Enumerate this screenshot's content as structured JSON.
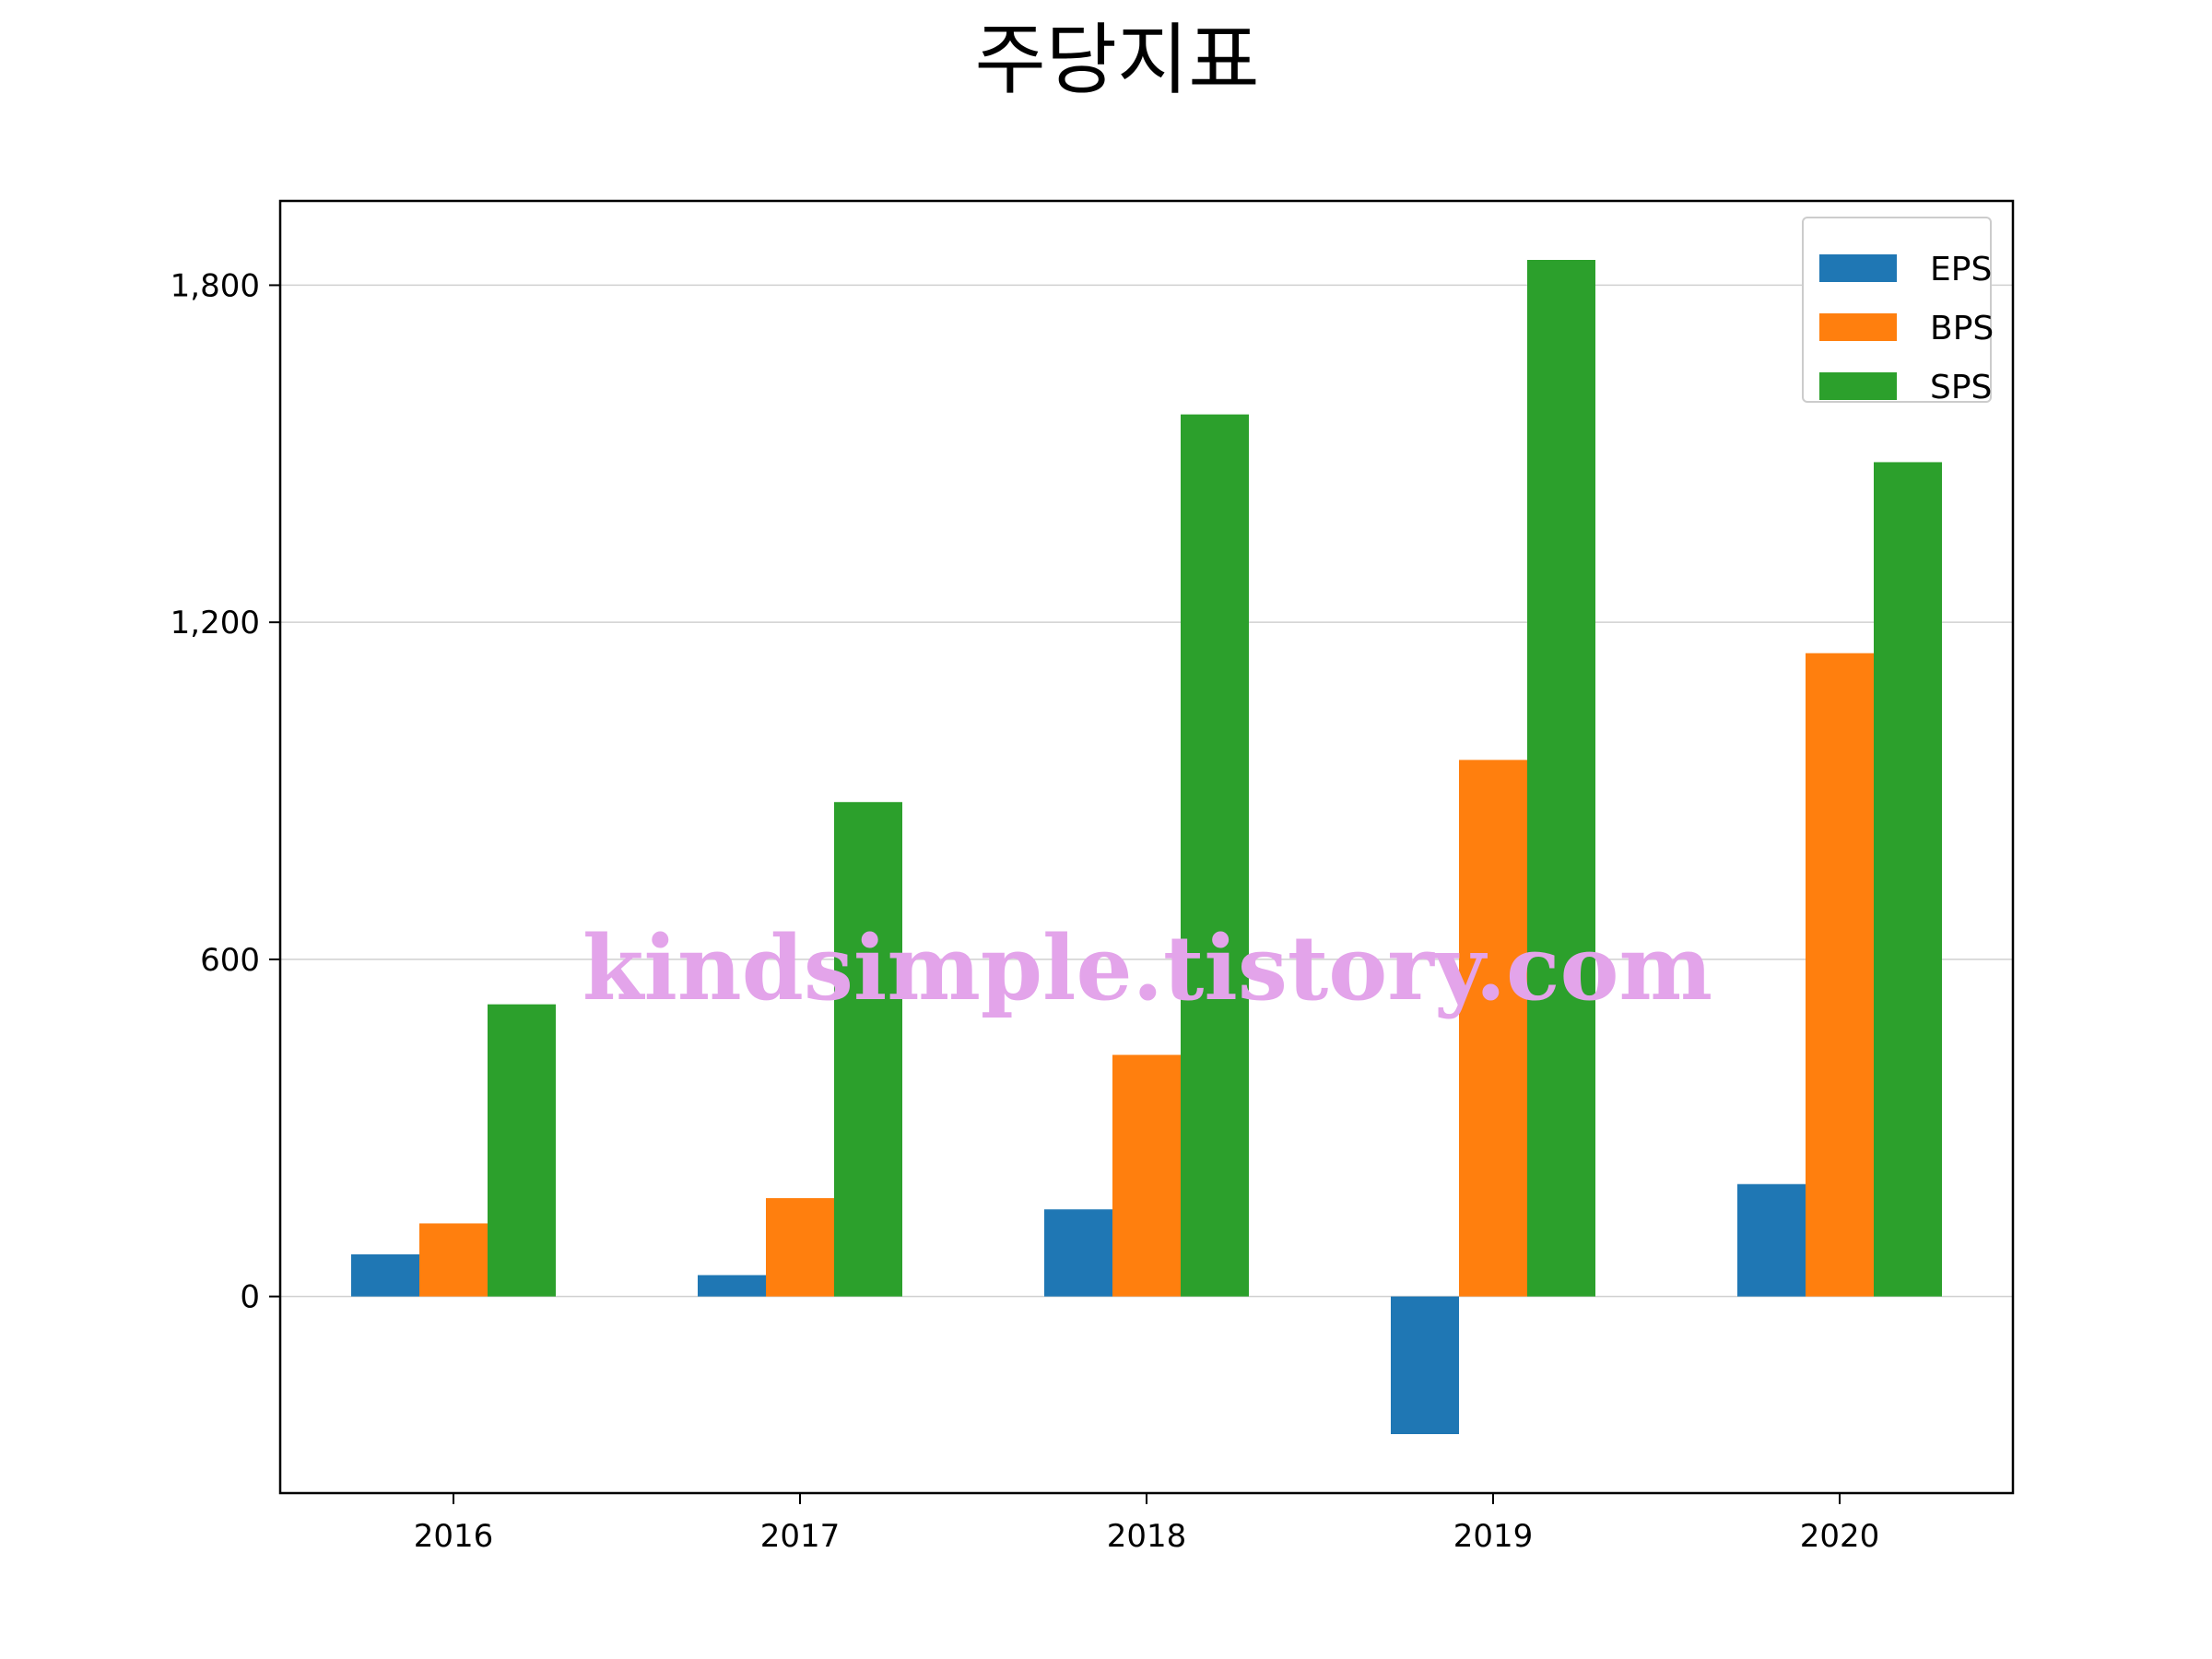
{
  "chart_data": {
    "type": "bar",
    "title": "주당지표",
    "categories": [
      "2016",
      "2017",
      "2018",
      "2019",
      "2020"
    ],
    "series": [
      {
        "name": "EPS",
        "color": "#1f77b4",
        "values": [
          75,
          38,
          155,
          -245,
          200
        ]
      },
      {
        "name": "BPS",
        "color": "#ff7f0e",
        "values": [
          130,
          175,
          430,
          955,
          1145
        ]
      },
      {
        "name": "SPS",
        "color": "#2ca02c",
        "values": [
          520,
          880,
          1570,
          1845,
          1485
        ]
      }
    ],
    "ylim": [
      -350,
      1950
    ],
    "yticks": [
      0,
      600,
      1200,
      1800
    ],
    "ytick_labels": [
      "0",
      "600",
      "1,200",
      "1,800"
    ],
    "grid": "horizontal",
    "legend_position": "top-right"
  },
  "watermark": "kindsimple.tistory.com"
}
